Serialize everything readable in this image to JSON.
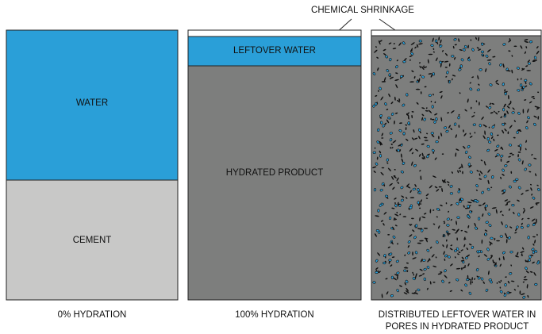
{
  "callout": "CHEMICAL SHRINKAGE",
  "panels": [
    {
      "caption": "0% HYDRATION",
      "regions": [
        "WATER",
        "CEMENT"
      ]
    },
    {
      "caption": "100% HYDRATION",
      "regions": [
        "LEFTOVER WATER",
        "HYDRATED PRODUCT"
      ]
    },
    {
      "caption_lines": [
        "DISTRIBUTED LEFTOVER WATER IN",
        "PORES IN HYDRATED PRODUCT"
      ]
    }
  ]
}
